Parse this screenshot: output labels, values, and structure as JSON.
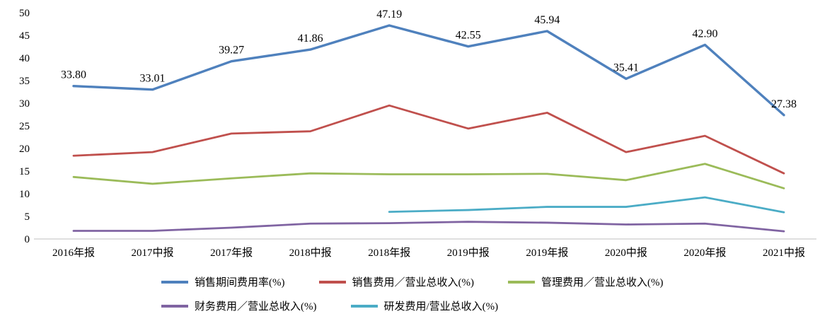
{
  "chart_data": {
    "type": "line",
    "title": "",
    "xlabel": "",
    "ylabel": "",
    "ylim": [
      0,
      50
    ],
    "yticks": [
      0,
      5,
      10,
      15,
      20,
      25,
      30,
      35,
      40,
      45,
      50
    ],
    "grid": false,
    "legend_position": "bottom",
    "categories": [
      "2016年报",
      "2017中报",
      "2017年报",
      "2018中报",
      "2018年报",
      "2019中报",
      "2019年报",
      "2020中报",
      "2020年报",
      "2021中报"
    ],
    "series": [
      {
        "name": "销售期间费用率(%)",
        "color": "#4F81BD",
        "width": 3.4,
        "show_labels": true,
        "values": [
          33.8,
          33.01,
          39.27,
          41.86,
          47.19,
          42.55,
          45.94,
          35.41,
          42.9,
          27.38
        ],
        "labels": [
          "33.80",
          "33.01",
          "39.27",
          "41.86",
          "47.19",
          "42.55",
          "45.94",
          "35.41",
          "42.90",
          "27.38"
        ]
      },
      {
        "name": "销售费用／营业总收入(%)",
        "color": "#C0504D",
        "width": 2.8,
        "show_labels": false,
        "values": [
          18.4,
          19.2,
          23.3,
          23.8,
          29.5,
          24.4,
          27.9,
          19.2,
          22.8,
          14.5
        ]
      },
      {
        "name": "管理费用／营业总收入(%)",
        "color": "#9BBB59",
        "width": 2.8,
        "show_labels": false,
        "values": [
          13.7,
          12.2,
          13.4,
          14.5,
          14.3,
          14.3,
          14.4,
          13.0,
          16.6,
          11.2
        ]
      },
      {
        "name": "财务费用／营业总收入(%)",
        "color": "#8064A2",
        "width": 2.8,
        "show_labels": false,
        "values": [
          1.8,
          1.8,
          2.5,
          3.4,
          3.5,
          3.8,
          3.6,
          3.2,
          3.4,
          1.7
        ]
      },
      {
        "name": "研发费用/营业总收入(%)",
        "color": "#4BACC6",
        "width": 2.8,
        "show_labels": false,
        "values": [
          null,
          null,
          null,
          null,
          6.0,
          6.4,
          7.1,
          7.1,
          9.2,
          5.9
        ]
      }
    ],
    "legend_rows": [
      [
        0,
        1,
        2
      ],
      [
        3,
        4
      ]
    ]
  }
}
